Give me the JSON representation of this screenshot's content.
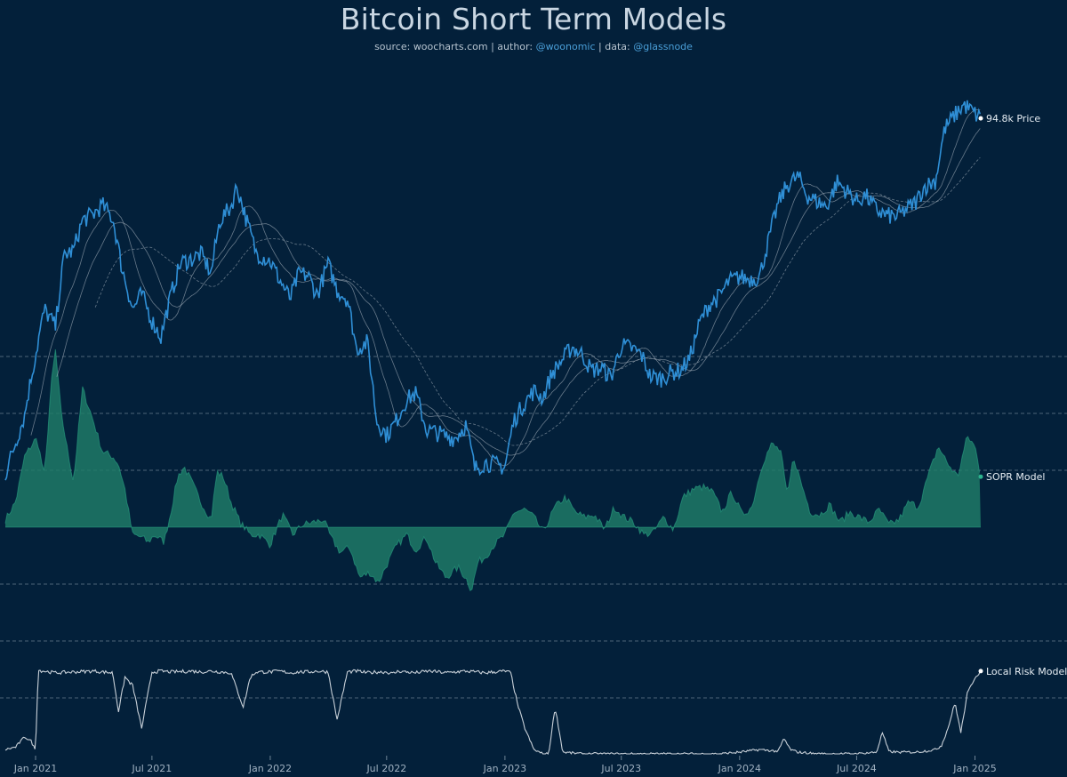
{
  "header": {
    "title": "Bitcoin Short Term Models",
    "source_label": "source:",
    "source_value": "woocharts.com",
    "author_label": "| author:",
    "author_value": "@woonomic",
    "data_label": "| data:",
    "data_value": "@glassnode"
  },
  "colors": {
    "background": "#03203a",
    "price": "#2f8fd6",
    "sopr_fill": "#1f7a67",
    "sopr_line": "#2db38e",
    "risk": "#c8d0d8",
    "grid": "#4d6478",
    "ma": "#b9c3cc"
  },
  "chart_data": [
    {
      "type": "line",
      "series_label": "94.8k Price",
      "x": [
        "2020-11-15",
        "2020-12-01",
        "2020-12-15",
        "2021-01-01",
        "2021-01-15",
        "2021-02-01",
        "2021-02-15",
        "2021-03-01",
        "2021-03-15",
        "2021-04-01",
        "2021-04-15",
        "2021-05-01",
        "2021-05-15",
        "2021-06-01",
        "2021-06-15",
        "2021-07-01",
        "2021-07-15",
        "2021-08-01",
        "2021-08-15",
        "2021-09-01",
        "2021-09-15",
        "2021-10-01",
        "2021-10-15",
        "2021-11-01",
        "2021-11-10",
        "2021-11-25",
        "2021-12-10",
        "2022-01-01",
        "2022-01-15",
        "2022-02-01",
        "2022-02-15",
        "2022-03-01",
        "2022-03-15",
        "2022-04-01",
        "2022-04-15",
        "2022-05-01",
        "2022-05-15",
        "2022-06-01",
        "2022-06-15",
        "2022-07-01",
        "2022-07-15",
        "2022-08-01",
        "2022-08-15",
        "2022-09-01",
        "2022-09-15",
        "2022-10-01",
        "2022-10-15",
        "2022-11-01",
        "2022-11-15",
        "2022-12-01",
        "2022-12-15",
        "2023-01-01",
        "2023-01-15",
        "2023-02-01",
        "2023-02-15",
        "2023-03-01",
        "2023-03-15",
        "2023-04-01",
        "2023-04-15",
        "2023-05-01",
        "2023-05-15",
        "2023-06-01",
        "2023-06-15",
        "2023-07-01",
        "2023-07-15",
        "2023-08-01",
        "2023-08-15",
        "2023-09-01",
        "2023-09-15",
        "2023-10-01",
        "2023-10-15",
        "2023-11-01",
        "2023-11-15",
        "2023-12-01",
        "2023-12-15",
        "2024-01-01",
        "2024-01-15",
        "2024-02-01",
        "2024-02-15",
        "2024-03-01",
        "2024-03-15",
        "2024-04-01",
        "2024-04-15",
        "2024-05-01",
        "2024-05-15",
        "2024-06-01",
        "2024-06-15",
        "2024-07-01",
        "2024-07-15",
        "2024-08-01",
        "2024-08-15",
        "2024-09-01",
        "2024-09-15",
        "2024-10-01",
        "2024-10-15",
        "2024-11-01",
        "2024-11-15",
        "2024-12-01",
        "2024-12-15",
        "2025-01-01",
        "2025-01-10"
      ],
      "values": [
        16000,
        18800,
        21500,
        29000,
        36500,
        33500,
        48000,
        49000,
        57000,
        58800,
        61500,
        57500,
        45000,
        36500,
        39500,
        34500,
        31800,
        39900,
        46200,
        47000,
        48200,
        43800,
        57000,
        61000,
        67500,
        57000,
        48500,
        46500,
        42500,
        38500,
        43800,
        43200,
        39200,
        45800,
        40200,
        38500,
        30000,
        31000,
        21000,
        19500,
        20800,
        23300,
        24000,
        20000,
        19800,
        19400,
        19200,
        20500,
        16500,
        17000,
        16900,
        16600,
        21000,
        23000,
        24300,
        23500,
        26500,
        28500,
        30300,
        29200,
        27000,
        27200,
        26000,
        30500,
        30200,
        29200,
        26100,
        25900,
        26600,
        27000,
        28500,
        34500,
        37500,
        39000,
        42000,
        43000,
        42500,
        43000,
        51500,
        62000,
        68000,
        71000,
        64500,
        62500,
        61000,
        69000,
        66000,
        62800,
        64500,
        60000,
        58500,
        58000,
        60000,
        62500,
        67500,
        69500,
        90000,
        96500,
        101500,
        97000,
        94800
      ],
      "ylim_log": [
        10000,
        120000
      ]
    },
    {
      "type": "area",
      "series_label": "SOPR Model",
      "x": [
        "2020-11-15",
        "2020-12-01",
        "2020-12-15",
        "2021-01-01",
        "2021-01-05",
        "2021-01-15",
        "2021-01-25",
        "2021-02-01",
        "2021-02-10",
        "2021-02-20",
        "2021-03-01",
        "2021-03-15",
        "2021-04-01",
        "2021-04-15",
        "2021-05-01",
        "2021-05-10",
        "2021-05-20",
        "2021-06-01",
        "2021-06-15",
        "2021-06-25",
        "2021-07-05",
        "2021-07-20",
        "2021-08-01",
        "2021-08-10",
        "2021-08-20",
        "2021-09-01",
        "2021-09-15",
        "2021-10-01",
        "2021-10-10",
        "2021-10-20",
        "2021-11-01",
        "2021-11-15",
        "2021-12-01",
        "2021-12-15",
        "2022-01-01",
        "2022-01-20",
        "2022-02-05",
        "2022-02-20",
        "2022-03-10",
        "2022-03-25",
        "2022-04-05",
        "2022-04-20",
        "2022-05-05",
        "2022-05-20",
        "2022-06-05",
        "2022-06-18",
        "2022-07-01",
        "2022-07-15",
        "2022-08-01",
        "2022-08-15",
        "2022-09-01",
        "2022-09-15",
        "2022-10-01",
        "2022-10-20",
        "2022-11-01",
        "2022-11-10",
        "2022-11-20",
        "2022-12-01",
        "2022-12-15",
        "2023-01-01",
        "2023-01-15",
        "2023-02-01",
        "2023-02-15",
        "2023-03-01",
        "2023-03-20",
        "2023-04-05",
        "2023-04-20",
        "2023-05-05",
        "2023-05-20",
        "2023-06-05",
        "2023-06-20",
        "2023-07-05",
        "2023-07-20",
        "2023-08-05",
        "2023-08-20",
        "2023-09-05",
        "2023-09-20",
        "2023-10-05",
        "2023-10-20",
        "2023-11-05",
        "2023-11-20",
        "2023-12-05",
        "2023-12-20",
        "2024-01-05",
        "2024-01-20",
        "2024-02-05",
        "2024-02-20",
        "2024-03-05",
        "2024-03-15",
        "2024-03-25",
        "2024-04-05",
        "2024-04-20",
        "2024-05-05",
        "2024-05-20",
        "2024-06-05",
        "2024-06-20",
        "2024-07-05",
        "2024-07-20",
        "2024-08-05",
        "2024-08-20",
        "2024-09-05",
        "2024-09-20",
        "2024-10-05",
        "2024-10-20",
        "2024-11-05",
        "2024-11-20",
        "2024-12-05",
        "2024-12-20",
        "2025-01-01",
        "2025-01-10"
      ],
      "values": [
        0.03,
        0.1,
        0.28,
        0.35,
        0.33,
        0.2,
        0.56,
        0.7,
        0.45,
        0.3,
        0.18,
        0.55,
        0.42,
        0.3,
        0.28,
        0.25,
        0.15,
        -0.03,
        -0.04,
        -0.06,
        -0.03,
        -0.06,
        0.08,
        0.2,
        0.24,
        0.18,
        0.1,
        0.03,
        0.22,
        0.2,
        0.1,
        0.02,
        -0.03,
        -0.03,
        -0.07,
        0.05,
        -0.03,
        0.01,
        0.02,
        0.03,
        -0.04,
        -0.1,
        -0.08,
        -0.2,
        -0.18,
        -0.22,
        -0.15,
        -0.08,
        -0.03,
        -0.09,
        -0.04,
        -0.14,
        -0.2,
        -0.16,
        -0.2,
        -0.25,
        -0.14,
        -0.12,
        -0.07,
        -0.03,
        0.06,
        0.07,
        0.04,
        -0.02,
        0.08,
        0.12,
        0.06,
        0.04,
        0.05,
        -0.01,
        0.08,
        0.04,
        0.02,
        -0.03,
        -0.02,
        0.04,
        -0.01,
        0.12,
        0.15,
        0.16,
        0.14,
        0.06,
        0.14,
        0.05,
        0.08,
        0.25,
        0.33,
        0.3,
        0.12,
        0.28,
        0.18,
        0.06,
        0.05,
        0.09,
        0.02,
        0.06,
        0.04,
        0.02,
        0.07,
        0.01,
        0.03,
        0.1,
        0.08,
        0.2,
        0.32,
        0.25,
        0.2,
        0.36,
        0.32,
        0.2
      ],
      "ylim": [
        -0.25,
        0.75
      ]
    },
    {
      "type": "line",
      "series_label": "Local Risk Model",
      "x": [
        "2020-11-15",
        "2020-12-01",
        "2020-12-15",
        "2020-12-25",
        "2021-01-01",
        "2021-01-05",
        "2021-02-01",
        "2021-03-01",
        "2021-04-01",
        "2021-05-01",
        "2021-05-10",
        "2021-05-20",
        "2021-06-01",
        "2021-06-15",
        "2021-07-01",
        "2021-07-15",
        "2021-08-01",
        "2021-09-01",
        "2021-09-15",
        "2021-10-01",
        "2021-11-01",
        "2021-11-20",
        "2021-12-01",
        "2021-12-10",
        "2022-01-01",
        "2022-01-15",
        "2022-02-01",
        "2022-02-15",
        "2022-03-01",
        "2022-03-15",
        "2022-04-01",
        "2022-04-15",
        "2022-05-01",
        "2022-05-15",
        "2022-06-01",
        "2022-06-15",
        "2022-07-01",
        "2022-07-10",
        "2022-07-20",
        "2022-08-01",
        "2022-08-15",
        "2022-08-25",
        "2022-09-05",
        "2022-09-20",
        "2022-10-01",
        "2022-10-15",
        "2022-11-01",
        "2022-11-15",
        "2022-12-01",
        "2022-12-15",
        "2023-01-01",
        "2023-01-10",
        "2023-01-20",
        "2023-02-01",
        "2023-02-15",
        "2023-03-01",
        "2023-03-10",
        "2023-03-20",
        "2023-04-01",
        "2023-05-01",
        "2023-06-01",
        "2023-07-01",
        "2023-08-01",
        "2023-09-01",
        "2023-10-01",
        "2023-11-01",
        "2023-12-01",
        "2024-01-01",
        "2024-02-01",
        "2024-03-01",
        "2024-03-10",
        "2024-03-20",
        "2024-04-01",
        "2024-05-01",
        "2024-06-01",
        "2024-07-01",
        "2024-08-01",
        "2024-08-10",
        "2024-08-20",
        "2024-09-01",
        "2024-10-01",
        "2024-11-01",
        "2024-11-10",
        "2024-11-20",
        "2024-12-01",
        "2024-12-10",
        "2024-12-20",
        "2025-01-01",
        "2025-01-10"
      ],
      "values": [
        0.05,
        0.08,
        0.2,
        0.15,
        0.04,
        0.98,
        0.95,
        0.96,
        0.97,
        0.95,
        0.5,
        0.9,
        0.8,
        0.3,
        0.96,
        0.97,
        0.96,
        0.97,
        0.96,
        0.97,
        0.95,
        0.55,
        0.9,
        0.96,
        0.96,
        0.97,
        0.95,
        0.96,
        0.96,
        0.97,
        0.96,
        0.4,
        0.96,
        0.97,
        0.95,
        0.96,
        0.96,
        0.94,
        0.97,
        0.96,
        0.95,
        0.96,
        0.97,
        0.96,
        0.95,
        0.96,
        0.97,
        0.96,
        0.95,
        0.96,
        0.97,
        0.95,
        0.6,
        0.3,
        0.05,
        0.0,
        0.0,
        0.55,
        0.02,
        0.0,
        0.0,
        0.0,
        0.0,
        0.0,
        0.0,
        0.0,
        0.0,
        0.02,
        0.05,
        0.03,
        0.18,
        0.05,
        0.02,
        0.0,
        0.0,
        0.0,
        0.02,
        0.25,
        0.03,
        0.02,
        0.02,
        0.05,
        0.1,
        0.3,
        0.6,
        0.25,
        0.7,
        0.9,
        0.97
      ],
      "ylim": [
        0,
        1
      ]
    }
  ],
  "axis": {
    "x_ticks": [
      {
        "date": "2021-01-01",
        "label": "Jan 2021"
      },
      {
        "date": "2021-07-01",
        "label": "Jul 2021"
      },
      {
        "date": "2022-01-01",
        "label": "Jan 2022"
      },
      {
        "date": "2022-07-01",
        "label": "Jul 2022"
      },
      {
        "date": "2023-01-01",
        "label": "Jan 2023"
      },
      {
        "date": "2023-07-01",
        "label": "Jul 2023"
      },
      {
        "date": "2024-01-01",
        "label": "Jan 2024"
      },
      {
        "date": "2024-07-01",
        "label": "Jul 2024"
      },
      {
        "date": "2025-01-01",
        "label": "Jan 2025"
      }
    ],
    "x_range": [
      "2020-11-15",
      "2025-01-10"
    ]
  }
}
